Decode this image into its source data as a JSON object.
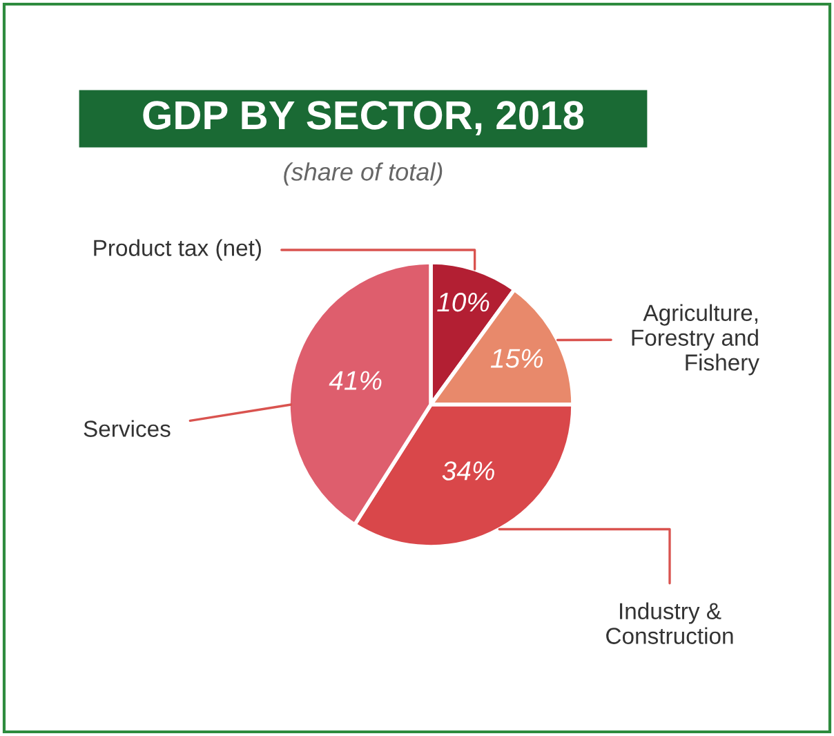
{
  "chart_data": {
    "type": "pie",
    "title": "GDP BY SECTOR, 2018",
    "subtitle": "(share of total)",
    "categories": [
      "Product tax (net)",
      "Agriculture,\nForestry and\nFishery",
      "Industry &\nConstruction",
      "Services"
    ],
    "values": [
      10,
      15,
      34,
      41
    ],
    "colors": [
      "#b31f33",
      "#e8896b",
      "#d9474a",
      "#de5e6d"
    ],
    "value_labels": [
      "10%",
      "15%",
      "34%",
      "41%"
    ]
  }
}
